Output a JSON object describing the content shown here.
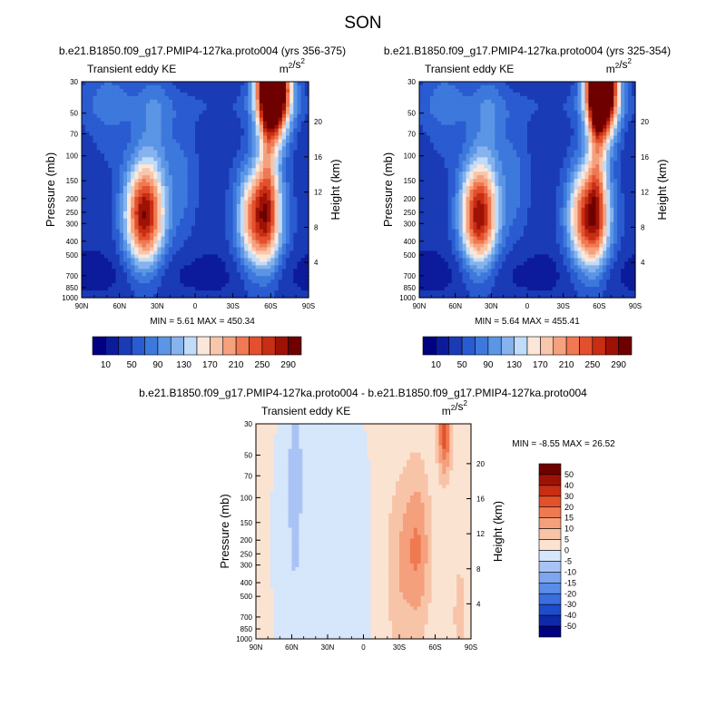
{
  "figure_title": "SON",
  "chart_data": [
    {
      "type": "heatmap",
      "id": "p1",
      "title": "b.e21.B1850.f09_g17.PMIP4-127ka.proto004 (yrs 356-375)",
      "left_label": "Transient eddy KE",
      "units_base": "m",
      "units_sup1": "2",
      "units_mid": "/s",
      "units_sup2": "2",
      "ylabel": "Pressure (mb)",
      "ylabel_right": "Height (km)",
      "x_ticks": [
        "90N",
        "60N",
        "30N",
        "0",
        "30S",
        "60S",
        "90S"
      ],
      "x_tick_vals": [
        90,
        60,
        30,
        0,
        -30,
        -60,
        -90
      ],
      "y_ticks": [
        "30",
        "50",
        "70",
        "100",
        "150",
        "200",
        "250",
        "300",
        "400",
        "500",
        "700",
        "850",
        "1000"
      ],
      "y_tick_vals": [
        30,
        50,
        70,
        100,
        150,
        200,
        250,
        300,
        400,
        500,
        700,
        850,
        1000
      ],
      "height_ticks": [
        "4",
        "8",
        "12",
        "16",
        "20"
      ],
      "height_vals": [
        4,
        8,
        12,
        16,
        20
      ],
      "x_range": [
        90,
        -90
      ],
      "y_range": [
        1000,
        30
      ],
      "min_text": "MIN =   5.61",
      "max_text": "MAX = 450.34",
      "levels": [
        10,
        30,
        50,
        70,
        90,
        110,
        130,
        150,
        170,
        190,
        210,
        230,
        250,
        270,
        290
      ],
      "colorbar_labels": [
        "10",
        "50",
        "90",
        "130",
        "170",
        "210",
        "250",
        "290"
      ],
      "features": [
        {
          "lat": 40,
          "p": 260,
          "amp": 255,
          "slat": 11,
          "slogp": 0.17
        },
        {
          "lat": -52,
          "p": 270,
          "amp": 235,
          "slat": 12,
          "slogp": 0.17
        },
        {
          "lat": -62,
          "p": 32,
          "amp": 430,
          "slat": 9,
          "slogp": 0.16
        },
        {
          "lat": -58,
          "p": 95,
          "amp": 70,
          "slat": 5,
          "slogp": 0.28
        },
        {
          "lat": 32,
          "p": 55,
          "amp": 45,
          "slat": 10,
          "slogp": 0.18
        },
        {
          "lat": 10,
          "p": 150,
          "amp": 40,
          "slat": 9,
          "slogp": 0.2
        },
        {
          "lat": 68,
          "p": 40,
          "amp": 35,
          "slat": 14,
          "slogp": 0.2
        }
      ]
    },
    {
      "type": "heatmap",
      "id": "p2",
      "title": "b.e21.B1850.f09_g17.PMIP4-127ka.proto004 (yrs 325-354)",
      "left_label": "Transient eddy KE",
      "units_base": "m",
      "units_sup1": "2",
      "units_mid": "/s",
      "units_sup2": "2",
      "ylabel": "Pressure (mb)",
      "ylabel_right": "Height (km)",
      "x_ticks": [
        "90N",
        "60N",
        "30N",
        "0",
        "30S",
        "60S",
        "90S"
      ],
      "x_tick_vals": [
        90,
        60,
        30,
        0,
        -30,
        -60,
        -90
      ],
      "y_ticks": [
        "30",
        "50",
        "70",
        "100",
        "150",
        "200",
        "250",
        "300",
        "400",
        "500",
        "700",
        "850",
        "1000"
      ],
      "y_tick_vals": [
        30,
        50,
        70,
        100,
        150,
        200,
        250,
        300,
        400,
        500,
        700,
        850,
        1000
      ],
      "height_ticks": [
        "4",
        "8",
        "12",
        "16",
        "20"
      ],
      "height_vals": [
        4,
        8,
        12,
        16,
        20
      ],
      "x_range": [
        90,
        -90
      ],
      "y_range": [
        1000,
        30
      ],
      "min_text": "MIN =   5.64",
      "max_text": "MAX = 455.41",
      "levels": [
        10,
        30,
        50,
        70,
        90,
        110,
        130,
        150,
        170,
        190,
        210,
        230,
        250,
        270,
        290
      ],
      "colorbar_labels": [
        "10",
        "50",
        "90",
        "130",
        "170",
        "210",
        "250",
        "290"
      ],
      "features": [
        {
          "lat": 40,
          "p": 260,
          "amp": 250,
          "slat": 11,
          "slogp": 0.17
        },
        {
          "lat": -52,
          "p": 270,
          "amp": 245,
          "slat": 12,
          "slogp": 0.17
        },
        {
          "lat": -62,
          "p": 32,
          "amp": 440,
          "slat": 9,
          "slogp": 0.16
        },
        {
          "lat": -58,
          "p": 95,
          "amp": 70,
          "slat": 5,
          "slogp": 0.28
        },
        {
          "lat": 32,
          "p": 55,
          "amp": 45,
          "slat": 10,
          "slogp": 0.18
        },
        {
          "lat": 10,
          "p": 150,
          "amp": 40,
          "slat": 9,
          "slogp": 0.2
        },
        {
          "lat": 68,
          "p": 40,
          "amp": 35,
          "slat": 14,
          "slogp": 0.2
        }
      ]
    },
    {
      "type": "heatmap",
      "id": "p3",
      "title": "b.e21.B1850.f09_g17.PMIP4-127ka.proto004 - b.e21.B1850.f09_g17.PMIP4-127ka.proto004",
      "left_label": "Transient eddy KE",
      "units_base": "m",
      "units_sup1": "2",
      "units_mid": "/s",
      "units_sup2": "2",
      "ylabel": "Pressure (mb)",
      "ylabel_right": "Height (km)",
      "x_ticks": [
        "90N",
        "60N",
        "30N",
        "0",
        "30S",
        "60S",
        "90S"
      ],
      "x_tick_vals": [
        90,
        60,
        30,
        0,
        -30,
        -60,
        -90
      ],
      "y_ticks": [
        "30",
        "50",
        "70",
        "100",
        "150",
        "200",
        "250",
        "300",
        "400",
        "500",
        "700",
        "850",
        "1000"
      ],
      "y_tick_vals": [
        30,
        50,
        70,
        100,
        150,
        200,
        250,
        300,
        400,
        500,
        700,
        850,
        1000
      ],
      "height_ticks": [
        "4",
        "8",
        "12",
        "16",
        "20"
      ],
      "height_vals": [
        4,
        8,
        12,
        16,
        20
      ],
      "x_range": [
        90,
        -90
      ],
      "y_range": [
        1000,
        30
      ],
      "min_text": "MIN =  -8.55",
      "max_text": "MAX =  26.52",
      "levels": [
        -50,
        -40,
        -30,
        -20,
        -15,
        -10,
        -5,
        0,
        5,
        10,
        15,
        20,
        30,
        40,
        50
      ],
      "colorbar_labels": [
        "50",
        "40",
        "30",
        "20",
        "15",
        "10",
        "5",
        "0",
        "-5",
        "-10",
        "-15",
        "-20",
        "-30",
        "-40",
        "-50"
      ],
      "features": [
        {
          "lat": -68,
          "p": 35,
          "amp": 22,
          "slat": 4,
          "slogp": 0.14
        },
        {
          "lat": -45,
          "p": 230,
          "amp": 13,
          "slat": 8,
          "slogp": 0.25
        },
        {
          "lat": -28,
          "p": 320,
          "amp": 7,
          "slat": 8,
          "slogp": 0.3
        },
        {
          "lat": 60,
          "p": 200,
          "amp": -6,
          "slat": 12,
          "slogp": 0.6
        },
        {
          "lat": 15,
          "p": 300,
          "amp": -6,
          "slat": 12,
          "slogp": 0.6
        },
        {
          "lat": 57,
          "p": 40,
          "amp": -7,
          "slat": 3,
          "slogp": 0.3
        },
        {
          "lat": -80,
          "p": 700,
          "amp": 5,
          "slat": 6,
          "slogp": 0.3
        }
      ]
    }
  ],
  "colors": {
    "ke": [
      "#000080",
      "#0c1b9b",
      "#1a3bb6",
      "#2a5bd0",
      "#3d79dc",
      "#5b95e5",
      "#86b2ed",
      "#c1dcf8",
      "#fbe7d9",
      "#f8c6ab",
      "#f5a17e",
      "#f07852",
      "#e2502d",
      "#c72e14",
      "#9e1206",
      "#6e0000"
    ],
    "diff": [
      "#000080",
      "#0e2aa8",
      "#1e4ccc",
      "#3a6ee0",
      "#5a8ce8",
      "#7ea6ef",
      "#a9c4f4",
      "#d6e6fb",
      "#fbe3d2",
      "#f8c4a8",
      "#f5a07c",
      "#ef7a52",
      "#e3512b",
      "#c72e14",
      "#9e1206",
      "#6e0000"
    ]
  }
}
